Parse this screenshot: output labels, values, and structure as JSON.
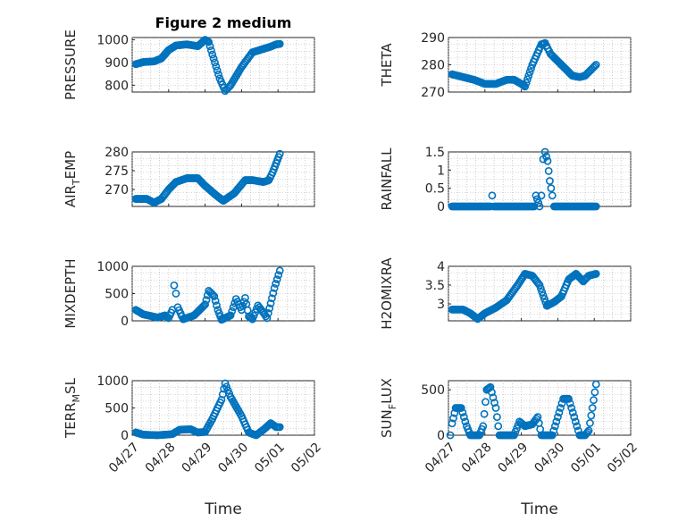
{
  "figure": {
    "title": "Figure 2 medium"
  },
  "chart_data": {
    "type": "scatter",
    "grid": true,
    "marker": "circle",
    "xlabel": "Time",
    "xticks": [
      "04/27",
      "04/28",
      "04/29",
      "04/30",
      "05/01",
      "05/02"
    ],
    "xlim": [
      0,
      5
    ],
    "panels": [
      {
        "id": "pressure",
        "ylabel": "PRESSURE",
        "ylim": [
          770,
          1010
        ],
        "yticks": [
          800,
          900,
          1000
        ],
        "yticklabels": [
          "800",
          "900",
          "1000"
        ],
        "keypoints": [
          [
            0.1,
            893
          ],
          [
            0.3,
            902
          ],
          [
            0.6,
            905
          ],
          [
            0.8,
            918
          ],
          [
            1.0,
            955
          ],
          [
            1.2,
            975
          ],
          [
            1.5,
            980
          ],
          [
            1.8,
            972
          ],
          [
            2.0,
            1000
          ],
          [
            2.1,
            990
          ],
          [
            2.2,
            935
          ],
          [
            2.4,
            830
          ],
          [
            2.55,
            775
          ],
          [
            2.7,
            800
          ],
          [
            3.0,
            880
          ],
          [
            3.3,
            945
          ],
          [
            3.6,
            960
          ],
          [
            3.8,
            970
          ],
          [
            3.95,
            980
          ],
          [
            4.05,
            982
          ]
        ]
      },
      {
        "id": "theta",
        "ylabel": "THETA",
        "ylim": [
          270,
          290
        ],
        "yticks": [
          270,
          280,
          290
        ],
        "yticklabels": [
          "270",
          "280",
          "290"
        ],
        "keypoints": [
          [
            0.1,
            276.5
          ],
          [
            0.4,
            275.5
          ],
          [
            0.7,
            274.5
          ],
          [
            1.0,
            273
          ],
          [
            1.3,
            273
          ],
          [
            1.6,
            274.5
          ],
          [
            1.8,
            274.5
          ],
          [
            2.0,
            273
          ],
          [
            2.1,
            272
          ],
          [
            2.3,
            280
          ],
          [
            2.55,
            287.5
          ],
          [
            2.65,
            288
          ],
          [
            2.8,
            284
          ],
          [
            3.1,
            280
          ],
          [
            3.4,
            276
          ],
          [
            3.6,
            275.5
          ],
          [
            3.75,
            276
          ],
          [
            3.9,
            278
          ],
          [
            4.05,
            280
          ]
        ]
      },
      {
        "id": "air_temp",
        "ylabel": "AIR_TEMP",
        "ylim": [
          265.5,
          280
        ],
        "yticks": [
          270,
          275,
          280
        ],
        "yticklabels": [
          "270",
          "275",
          "280"
        ],
        "keypoints": [
          [
            0.1,
            267.5
          ],
          [
            0.4,
            267.5
          ],
          [
            0.6,
            266.5
          ],
          [
            0.8,
            267.5
          ],
          [
            1.0,
            270
          ],
          [
            1.2,
            272
          ],
          [
            1.5,
            273
          ],
          [
            1.8,
            273
          ],
          [
            2.0,
            271
          ],
          [
            2.3,
            268.5
          ],
          [
            2.5,
            267
          ],
          [
            2.8,
            269
          ],
          [
            3.1,
            272.5
          ],
          [
            3.3,
            272.5
          ],
          [
            3.6,
            272
          ],
          [
            3.75,
            272.5
          ],
          [
            3.85,
            274.5
          ],
          [
            3.95,
            277
          ],
          [
            4.05,
            279.5
          ]
        ]
      },
      {
        "id": "rainfall",
        "ylabel": "RAINFALL",
        "ylim": [
          0,
          1.5
        ],
        "yticks": [
          0,
          0.5,
          1,
          1.5
        ],
        "yticklabels": [
          "0",
          "0.5",
          "1",
          "1.5"
        ],
        "keypoints": [
          [
            0.1,
            0
          ],
          [
            1.15,
            0
          ],
          [
            1.2,
            0.3
          ],
          [
            1.25,
            0
          ],
          [
            2.35,
            0
          ],
          [
            2.4,
            0.3
          ],
          [
            2.5,
            0
          ],
          [
            2.55,
            0.3
          ],
          [
            2.6,
            1.3
          ],
          [
            2.65,
            1.5
          ],
          [
            2.72,
            1.25
          ],
          [
            2.78,
            0.7
          ],
          [
            2.85,
            0.3
          ],
          [
            2.9,
            0
          ],
          [
            4.05,
            0
          ]
        ]
      },
      {
        "id": "mixdepth",
        "ylabel": "MIXDEPTH",
        "ylim": [
          0,
          1000
        ],
        "yticks": [
          0,
          500,
          1000
        ],
        "yticklabels": [
          "0",
          "500",
          "1000"
        ],
        "keypoints": [
          [
            0.1,
            200
          ],
          [
            0.3,
            120
          ],
          [
            0.5,
            90
          ],
          [
            0.7,
            60
          ],
          [
            0.9,
            100
          ],
          [
            1.0,
            50
          ],
          [
            1.1,
            200
          ],
          [
            1.15,
            650
          ],
          [
            1.2,
            500
          ],
          [
            1.25,
            250
          ],
          [
            1.4,
            30
          ],
          [
            1.7,
            100
          ],
          [
            2.0,
            300
          ],
          [
            2.1,
            550
          ],
          [
            2.25,
            450
          ],
          [
            2.35,
            200
          ],
          [
            2.45,
            20
          ],
          [
            2.7,
            100
          ],
          [
            2.85,
            400
          ],
          [
            3.0,
            200
          ],
          [
            3.1,
            420
          ],
          [
            3.2,
            80
          ],
          [
            3.3,
            30
          ],
          [
            3.45,
            280
          ],
          [
            3.6,
            150
          ],
          [
            3.7,
            50
          ],
          [
            3.8,
            320
          ],
          [
            3.9,
            600
          ],
          [
            4.05,
            920
          ]
        ]
      },
      {
        "id": "h2omixra",
        "ylabel": "H2OMIXRA",
        "ylim": [
          2.55,
          4.0
        ],
        "yticks": [
          3.0,
          3.5,
          4.0
        ],
        "yticklabels": [
          "3",
          "3.5",
          "4"
        ],
        "keypoints": [
          [
            0.1,
            2.85
          ],
          [
            0.4,
            2.85
          ],
          [
            0.6,
            2.75
          ],
          [
            0.8,
            2.6
          ],
          [
            1.0,
            2.75
          ],
          [
            1.3,
            2.9
          ],
          [
            1.6,
            3.1
          ],
          [
            1.9,
            3.5
          ],
          [
            2.1,
            3.8
          ],
          [
            2.3,
            3.75
          ],
          [
            2.5,
            3.5
          ],
          [
            2.7,
            2.95
          ],
          [
            2.9,
            3.05
          ],
          [
            3.1,
            3.2
          ],
          [
            3.3,
            3.65
          ],
          [
            3.5,
            3.8
          ],
          [
            3.7,
            3.6
          ],
          [
            3.85,
            3.75
          ],
          [
            4.05,
            3.8
          ]
        ]
      },
      {
        "id": "terr_msl",
        "ylabel": "TERR_MSL",
        "ylim": [
          0,
          1000
        ],
        "yticks": [
          0,
          500,
          1000
        ],
        "yticklabels": [
          "0",
          "500",
          "1000"
        ],
        "keypoints": [
          [
            0.1,
            50
          ],
          [
            0.3,
            10
          ],
          [
            0.7,
            0
          ],
          [
            1.1,
            20
          ],
          [
            1.3,
            100
          ],
          [
            1.6,
            110
          ],
          [
            1.8,
            50
          ],
          [
            2.0,
            60
          ],
          [
            2.2,
            300
          ],
          [
            2.45,
            650
          ],
          [
            2.55,
            950
          ],
          [
            2.7,
            700
          ],
          [
            3.0,
            350
          ],
          [
            3.2,
            50
          ],
          [
            3.4,
            0
          ],
          [
            3.6,
            100
          ],
          [
            3.8,
            220
          ],
          [
            3.95,
            150
          ],
          [
            4.05,
            150
          ]
        ]
      },
      {
        "id": "sun_flux",
        "ylabel": "SUN_FLUX",
        "ylim": [
          0,
          600
        ],
        "yticks": [
          0,
          500
        ],
        "yticklabels": [
          "0",
          "500"
        ],
        "keypoints": [
          [
            0.05,
            0
          ],
          [
            0.1,
            130
          ],
          [
            0.2,
            300
          ],
          [
            0.35,
            300
          ],
          [
            0.5,
            100
          ],
          [
            0.6,
            0
          ],
          [
            0.85,
            0
          ],
          [
            0.95,
            100
          ],
          [
            1.05,
            500
          ],
          [
            1.15,
            530
          ],
          [
            1.3,
            300
          ],
          [
            1.4,
            0
          ],
          [
            1.8,
            0
          ],
          [
            1.95,
            150
          ],
          [
            2.1,
            100
          ],
          [
            2.3,
            120
          ],
          [
            2.45,
            200
          ],
          [
            2.55,
            0
          ],
          [
            2.85,
            0
          ],
          [
            3.0,
            200
          ],
          [
            3.15,
            400
          ],
          [
            3.3,
            400
          ],
          [
            3.45,
            200
          ],
          [
            3.6,
            0
          ],
          [
            3.75,
            0
          ],
          [
            3.85,
            50
          ],
          [
            3.95,
            300
          ],
          [
            4.05,
            560
          ]
        ]
      }
    ]
  }
}
